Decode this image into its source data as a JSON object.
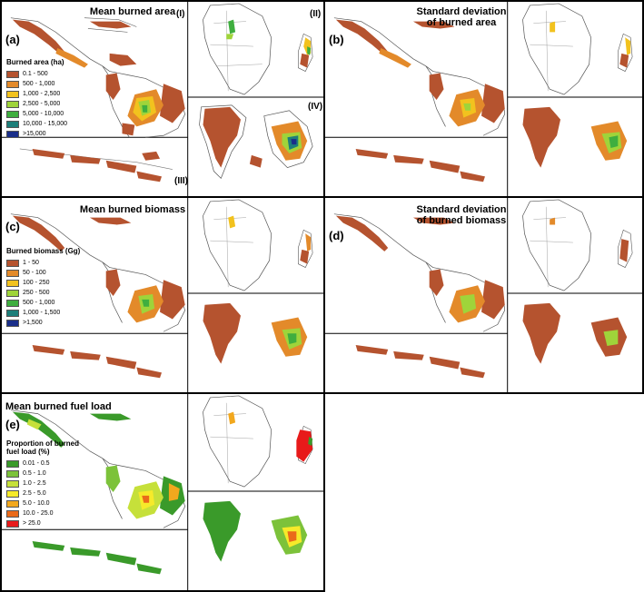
{
  "panels": [
    {
      "letter": "(a)",
      "title": "Mean burned area",
      "legend_title": "Burned area (ha)",
      "subregions": [
        "(I)",
        "(II)",
        "(III)",
        "(IV)"
      ]
    },
    {
      "letter": "(b)",
      "title": "Standard deviation of burned area"
    },
    {
      "letter": "(c)",
      "title": "Mean burned biomass",
      "legend_title": "Burned biomass (Gg)"
    },
    {
      "letter": "(d)",
      "title": "Standard deviation of burned biomass"
    },
    {
      "letter": "(e)",
      "title": "Mean burned fuel load",
      "legend_title": "Proportion of burned fuel load (%)"
    }
  ],
  "legend_a": {
    "items": [
      {
        "label": "0.1 - 500",
        "color": "#b5532f"
      },
      {
        "label": "500 - 1,000",
        "color": "#e38a2a"
      },
      {
        "label": "1,000 - 2,500",
        "color": "#f2c21e"
      },
      {
        "label": "2,500 - 5,000",
        "color": "#9fd43a"
      },
      {
        "label": "5,000 - 10,000",
        "color": "#3fae3f"
      },
      {
        "label": "10,000 - 15,000",
        "color": "#1d7f7a"
      },
      {
        "label": ">15,000",
        "color": "#1a2f8a"
      }
    ]
  },
  "legend_c": {
    "items": [
      {
        "label": "1 - 50",
        "color": "#b5532f"
      },
      {
        "label": "50 - 100",
        "color": "#e38a2a"
      },
      {
        "label": "100 - 250",
        "color": "#f2c21e"
      },
      {
        "label": "250 - 500",
        "color": "#9fd43a"
      },
      {
        "label": "500 - 1,000",
        "color": "#3fae3f"
      },
      {
        "label": "1,000 - 1,500",
        "color": "#1d7f7a"
      },
      {
        "label": ">1,500",
        "color": "#1a2f8a"
      }
    ]
  },
  "legend_e": {
    "items": [
      {
        "label": "0.01 - 0.5",
        "color": "#3a9a2a"
      },
      {
        "label": "0.5 - 1.0",
        "color": "#7cc23a"
      },
      {
        "label": "1.0 - 2.5",
        "color": "#c6e03a"
      },
      {
        "label": "2.5 - 5.0",
        "color": "#f6ea2a"
      },
      {
        "label": "5.0 - 10.0",
        "color": "#f2a81e"
      },
      {
        "label": "10.0 - 25.0",
        "color": "#ea6a1a"
      },
      {
        "label": "> 25.0",
        "color": "#e81a1a"
      }
    ]
  }
}
